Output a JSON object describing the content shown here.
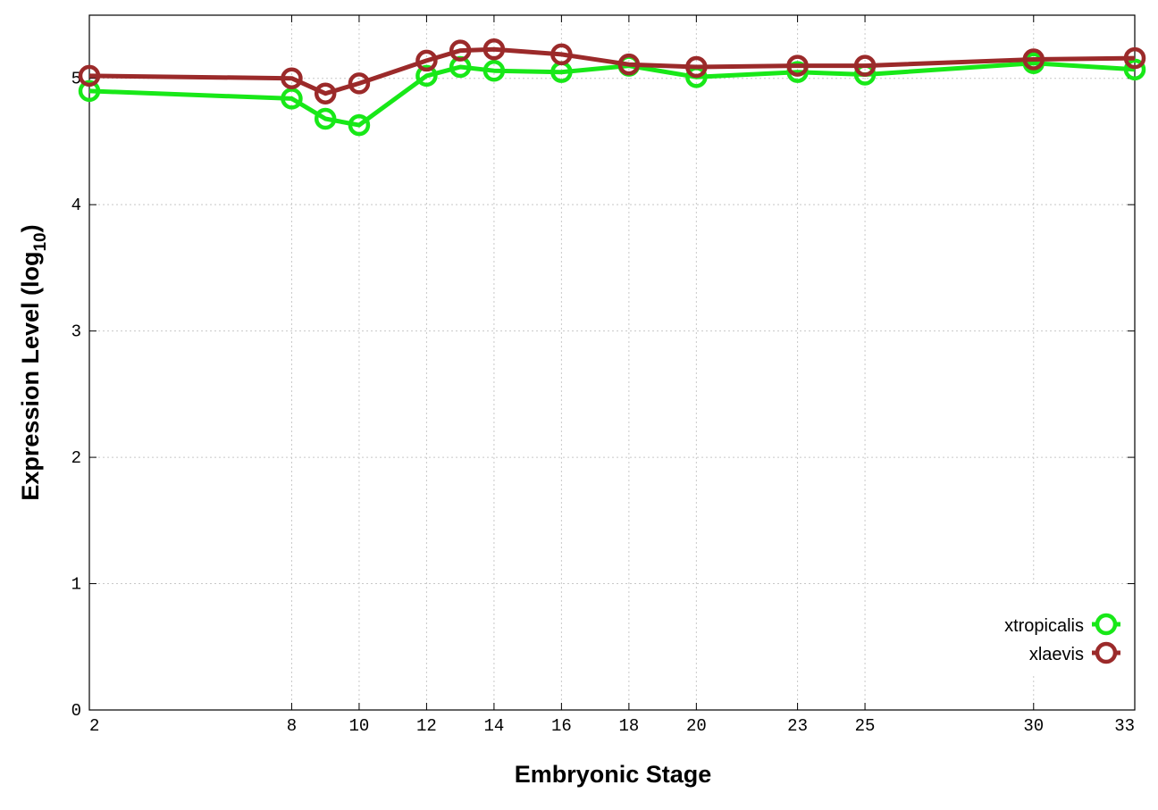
{
  "chart_data": {
    "type": "line",
    "xlabel": "Embryonic Stage",
    "ylabel_main": "Expression Level (log",
    "ylabel_sub": "10",
    "ylabel_close": ")",
    "ylim": [
      0,
      5.5
    ],
    "xlim": [
      2,
      33
    ],
    "yticks": [
      0,
      1,
      2,
      3,
      4,
      5
    ],
    "xticks": [
      2,
      8,
      10,
      12,
      14,
      16,
      18,
      20,
      23,
      25,
      30,
      33
    ],
    "grid": true,
    "legend_position": "bottom-right",
    "series": [
      {
        "name": "xtropicalis",
        "color": "#18e818",
        "x": [
          2,
          8,
          9,
          10,
          12,
          13,
          14,
          16,
          18,
          20,
          23,
          25,
          30,
          33
        ],
        "values": [
          4.9,
          4.84,
          4.68,
          4.63,
          5.02,
          5.09,
          5.06,
          5.05,
          5.1,
          5.01,
          5.05,
          5.03,
          5.12,
          5.07
        ]
      },
      {
        "name": "xlaevis",
        "color": "#9b2a2a",
        "x": [
          2,
          8,
          9,
          10,
          12,
          13,
          14,
          16,
          18,
          20,
          23,
          25,
          30,
          33
        ],
        "values": [
          5.02,
          5.0,
          4.88,
          4.96,
          5.14,
          5.22,
          5.23,
          5.19,
          5.11,
          5.09,
          5.1,
          5.1,
          5.15,
          5.16
        ]
      }
    ]
  }
}
